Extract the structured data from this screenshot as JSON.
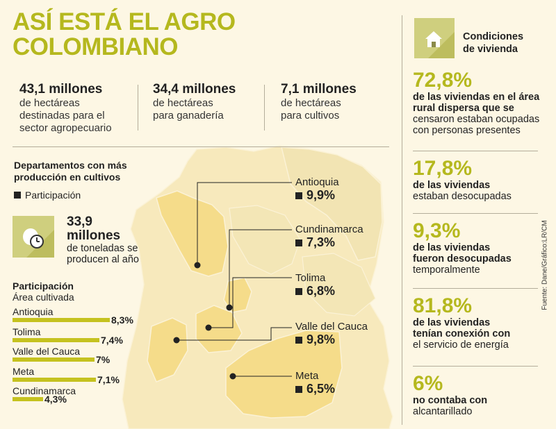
{
  "title_line1": "ASÍ ESTÁ EL AGRO",
  "title_line2": "COLOMBIANO",
  "stats": [
    {
      "value": "43,1 millones",
      "text": [
        "de hectáreas",
        "destinadas para el",
        "sector agropecuario"
      ]
    },
    {
      "value": "34,4 millones",
      "text": [
        "de hectáreas",
        "para ganadería"
      ]
    },
    {
      "value": "7,1 millones",
      "text": [
        "de hectáreas",
        "para cultivos"
      ]
    }
  ],
  "departments_title": [
    "Departamentos con más",
    "producción en cultivos"
  ],
  "participation_legend": "Participación",
  "tonnage": {
    "value_line1": "33,9",
    "value_line2": "millones",
    "text": [
      "de toneladas se",
      "producen al año"
    ]
  },
  "area_chart": {
    "title": "Participación",
    "subtitle": "Área cultivada",
    "items": [
      {
        "name": "Antioquia",
        "value": 8.3,
        "label": "8,3%"
      },
      {
        "name": "Tolima",
        "value": 7.4,
        "label": "7,4%"
      },
      {
        "name": "Valle del Cauca",
        "value": 7.0,
        "label": "7%"
      },
      {
        "name": "Meta",
        "value": 7.1,
        "label": "7,1%"
      },
      {
        "name": "Cundinamarca",
        "value": 4.3,
        "label": "4,3%"
      }
    ]
  },
  "map_labels": [
    {
      "name": "Antioquia",
      "value": "9,9%"
    },
    {
      "name": "Cundinamarca",
      "value": "7,3%"
    },
    {
      "name": "Tolima",
      "value": "6,8%"
    },
    {
      "name": "Valle del Cauca",
      "value": "9,8%"
    },
    {
      "name": "Meta",
      "value": "6,5%"
    }
  ],
  "housing": {
    "title": [
      "Condiciones",
      "de vivienda"
    ],
    "items": [
      {
        "value": "72,8%",
        "lines": [
          {
            "t": "de las viviendas en el área",
            "b": true
          },
          {
            "t": "rural dispersa que se",
            "b": true
          },
          {
            "t": "censaron estaban ocupadas",
            "b": false
          },
          {
            "t": "con personas presentes",
            "b": false
          }
        ]
      },
      {
        "value": "17,8%",
        "lines": [
          {
            "t": "de las viviendas",
            "b": true
          },
          {
            "t": "estaban desocupadas",
            "b": false
          }
        ]
      },
      {
        "value": "9,3%",
        "lines": [
          {
            "t": "de las viviendas",
            "b": true
          },
          {
            "t": "fueron desocupadas",
            "b": true
          },
          {
            "t": "temporalmente",
            "b": false
          }
        ]
      },
      {
        "value": "81,8%",
        "lines": [
          {
            "t": "de las viviendas",
            "b": true
          },
          {
            "t": "tenían conexión con",
            "b": true
          },
          {
            "t": "el servicio de energía",
            "b": false
          }
        ]
      },
      {
        "value": "6%",
        "lines": [
          {
            "t": "no contaba con",
            "b": true
          },
          {
            "t": "alcantarillado",
            "b": false
          }
        ]
      }
    ]
  },
  "source": "Fuente: Dane/Gráfico:LR/CM",
  "colors": {
    "accent": "#b5b81e",
    "map_light": "#f7e9bc",
    "map_highlight": "#f5dc8a"
  }
}
